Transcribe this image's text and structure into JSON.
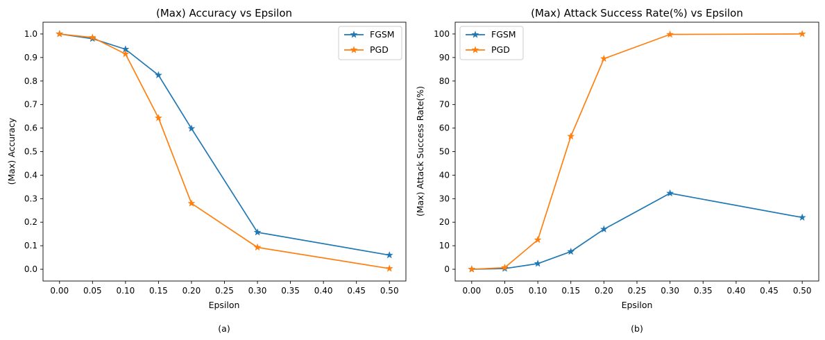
{
  "chart_data": [
    {
      "type": "line",
      "title": "(Max) Accuracy vs Epsilon",
      "xlabel": "Epsilon",
      "ylabel": "(Max) Accuracy",
      "caption": "(a)",
      "xlim": [
        -0.025,
        0.525
      ],
      "ylim": [
        -0.05,
        1.05
      ],
      "xticks": [
        "0.00",
        "0.05",
        "0.10",
        "0.15",
        "0.20",
        "0.25",
        "0.30",
        "0.35",
        "0.40",
        "0.45",
        "0.50"
      ],
      "yticks": [
        "0.0",
        "0.1",
        "0.2",
        "0.3",
        "0.4",
        "0.5",
        "0.6",
        "0.7",
        "0.8",
        "0.9",
        "1.0"
      ],
      "legend_position": "top-right",
      "grid": false,
      "x": [
        0.0,
        0.05,
        0.1,
        0.15,
        0.2,
        0.3,
        0.5
      ],
      "series": [
        {
          "name": "FGSM",
          "color": "#1f77b4",
          "marker": "star",
          "values": [
            1.0,
            0.98,
            0.935,
            0.825,
            0.598,
            0.157,
            0.06
          ]
        },
        {
          "name": "PGD",
          "color": "#ff7f0e",
          "marker": "star",
          "values": [
            1.0,
            0.985,
            0.915,
            0.643,
            0.28,
            0.093,
            0.003
          ]
        }
      ]
    },
    {
      "type": "line",
      "title": "(Max) Attack Success Rate(%) vs Epsilon",
      "xlabel": "Epsilon",
      "ylabel": "(Max) Attack Success Rate(%)",
      "caption": "(b)",
      "xlim": [
        -0.025,
        0.525
      ],
      "ylim": [
        -5,
        105
      ],
      "xticks": [
        "0.00",
        "0.05",
        "0.10",
        "0.15",
        "0.20",
        "0.25",
        "0.30",
        "0.35",
        "0.40",
        "0.45",
        "0.50"
      ],
      "yticks": [
        "0",
        "10",
        "20",
        "30",
        "40",
        "50",
        "60",
        "70",
        "80",
        "90",
        "100"
      ],
      "legend_position": "top-left",
      "grid": false,
      "x": [
        0.0,
        0.05,
        0.1,
        0.15,
        0.2,
        0.3,
        0.5
      ],
      "series": [
        {
          "name": "FGSM",
          "color": "#1f77b4",
          "marker": "star",
          "values": [
            0.0,
            0.3,
            2.4,
            7.5,
            17.0,
            32.3,
            22.0
          ]
        },
        {
          "name": "PGD",
          "color": "#ff7f0e",
          "marker": "star",
          "values": [
            0.0,
            0.7,
            12.5,
            56.5,
            89.5,
            99.8,
            100.0
          ]
        }
      ]
    }
  ]
}
